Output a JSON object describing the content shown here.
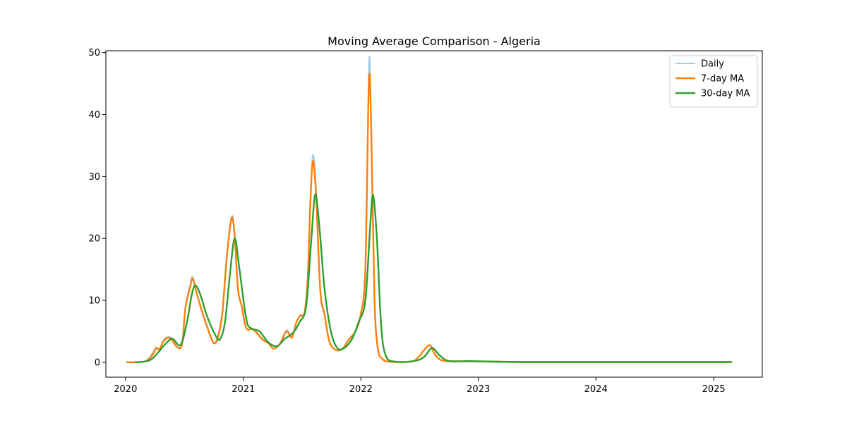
{
  "chart_data": {
    "type": "line",
    "title": "Moving Average Comparison - Algeria",
    "xlabel": "",
    "ylabel": "",
    "xlim": [
      "2019-11-01",
      "2025-06-01"
    ],
    "ylim": [
      -2.4,
      50.3
    ],
    "x_ticks": [
      "2020-01-01",
      "2021-01-01",
      "2022-01-01",
      "2023-01-01",
      "2024-01-01",
      "2025-01-01"
    ],
    "x_tick_labels": [
      "2020",
      "2021",
      "2022",
      "2023",
      "2024",
      "2025"
    ],
    "y_ticks": [
      0,
      10,
      20,
      30,
      40,
      50
    ],
    "y_tick_labels": [
      "0",
      "10",
      "20",
      "30",
      "40",
      "50"
    ],
    "grid": false,
    "legend_position": "top-right",
    "series": [
      {
        "name": "Daily",
        "color": "#a6cee3",
        "points": [
          [
            "2020-01-05",
            0
          ],
          [
            "2020-03-01",
            0.2
          ],
          [
            "2020-03-25",
            1.5
          ],
          [
            "2020-04-05",
            2.4
          ],
          [
            "2020-04-15",
            2.2
          ],
          [
            "2020-05-01",
            3.8
          ],
          [
            "2020-05-20",
            4.0
          ],
          [
            "2020-06-10",
            2.5
          ],
          [
            "2020-06-25",
            3.2
          ],
          [
            "2020-07-05",
            9.0
          ],
          [
            "2020-07-20",
            12.5
          ],
          [
            "2020-07-28",
            13.8
          ],
          [
            "2020-08-10",
            11.0
          ],
          [
            "2020-08-25",
            8.5
          ],
          [
            "2020-09-10",
            6.0
          ],
          [
            "2020-10-01",
            3.2
          ],
          [
            "2020-10-15",
            4.5
          ],
          [
            "2020-10-28",
            8.5
          ],
          [
            "2020-11-10",
            17.0
          ],
          [
            "2020-11-25",
            23.5
          ],
          [
            "2020-12-05",
            21.0
          ],
          [
            "2020-12-15",
            12.0
          ],
          [
            "2020-12-28",
            9.0
          ],
          [
            "2021-01-10",
            5.5
          ],
          [
            "2021-02-01",
            5.4
          ],
          [
            "2021-03-01",
            3.8
          ],
          [
            "2021-03-20",
            3.2
          ],
          [
            "2021-04-05",
            2.2
          ],
          [
            "2021-04-25",
            3.0
          ],
          [
            "2021-05-15",
            5.2
          ],
          [
            "2021-06-01",
            4.0
          ],
          [
            "2021-06-15",
            6.5
          ],
          [
            "2021-06-28",
            7.6
          ],
          [
            "2021-07-10",
            8.0
          ],
          [
            "2021-07-20",
            14.0
          ],
          [
            "2021-07-28",
            26.0
          ],
          [
            "2021-08-05",
            33.5
          ],
          [
            "2021-08-15",
            28.0
          ],
          [
            "2021-08-28",
            12.0
          ],
          [
            "2021-09-10",
            8.0
          ],
          [
            "2021-09-25",
            3.5
          ],
          [
            "2021-10-15",
            2.0
          ],
          [
            "2021-11-05",
            2.2
          ],
          [
            "2021-11-25",
            3.8
          ],
          [
            "2021-12-15",
            5.0
          ],
          [
            "2022-01-01",
            8.0
          ],
          [
            "2022-01-15",
            15.0
          ],
          [
            "2022-01-26",
            48.0
          ],
          [
            "2022-02-02",
            40.0
          ],
          [
            "2022-02-12",
            12.0
          ],
          [
            "2022-02-22",
            2.5
          ],
          [
            "2022-03-10",
            0.5
          ],
          [
            "2022-04-01",
            0.1
          ],
          [
            "2022-06-01",
            0.1
          ],
          [
            "2022-06-25",
            0.6
          ],
          [
            "2022-07-20",
            2.2
          ],
          [
            "2022-08-05",
            2.8
          ],
          [
            "2022-08-20",
            1.2
          ],
          [
            "2022-09-10",
            0.3
          ],
          [
            "2022-10-15",
            0.2
          ],
          [
            "2022-12-01",
            0.15
          ],
          [
            "2023-03-01",
            0.1
          ],
          [
            "2023-06-01",
            0.05
          ],
          [
            "2023-12-01",
            0.05
          ],
          [
            "2024-06-01",
            0.05
          ],
          [
            "2024-09-01",
            0.05
          ],
          [
            "2025-02-25",
            0.05
          ]
        ]
      },
      {
        "name": "7-day MA",
        "color": "#ff7f0e",
        "points": [
          [
            "2020-01-05",
            0
          ],
          [
            "2020-03-01",
            0.15
          ],
          [
            "2020-03-25",
            1.2
          ],
          [
            "2020-04-05",
            2.3
          ],
          [
            "2020-04-15",
            2.1
          ],
          [
            "2020-05-01",
            3.6
          ],
          [
            "2020-05-20",
            3.9
          ],
          [
            "2020-06-10",
            2.4
          ],
          [
            "2020-06-25",
            3.0
          ],
          [
            "2020-07-05",
            8.8
          ],
          [
            "2020-07-20",
            12.2
          ],
          [
            "2020-07-28",
            13.5
          ],
          [
            "2020-08-10",
            11.0
          ],
          [
            "2020-08-25",
            8.3
          ],
          [
            "2020-09-10",
            5.8
          ],
          [
            "2020-10-01",
            3.1
          ],
          [
            "2020-10-15",
            4.2
          ],
          [
            "2020-10-28",
            8.0
          ],
          [
            "2020-11-10",
            16.5
          ],
          [
            "2020-11-25",
            23.2
          ],
          [
            "2020-12-05",
            20.5
          ],
          [
            "2020-12-15",
            12.0
          ],
          [
            "2020-12-28",
            8.8
          ],
          [
            "2021-01-10",
            5.5
          ],
          [
            "2021-02-01",
            5.3
          ],
          [
            "2021-03-01",
            3.7
          ],
          [
            "2021-03-20",
            3.1
          ],
          [
            "2021-04-05",
            2.2
          ],
          [
            "2021-04-25",
            3.0
          ],
          [
            "2021-05-15",
            5.0
          ],
          [
            "2021-06-01",
            4.0
          ],
          [
            "2021-06-15",
            6.5
          ],
          [
            "2021-06-28",
            7.6
          ],
          [
            "2021-07-10",
            8.0
          ],
          [
            "2021-07-20",
            13.5
          ],
          [
            "2021-07-28",
            25.5
          ],
          [
            "2021-08-05",
            32.5
          ],
          [
            "2021-08-15",
            27.0
          ],
          [
            "2021-08-28",
            11.5
          ],
          [
            "2021-09-10",
            7.8
          ],
          [
            "2021-09-25",
            3.4
          ],
          [
            "2021-10-15",
            2.0
          ],
          [
            "2021-11-05",
            2.2
          ],
          [
            "2021-11-25",
            3.7
          ],
          [
            "2021-12-15",
            5.0
          ],
          [
            "2022-01-01",
            7.8
          ],
          [
            "2022-01-15",
            15.0
          ],
          [
            "2022-01-26",
            45.3
          ],
          [
            "2022-02-02",
            38.0
          ],
          [
            "2022-02-12",
            11.0
          ],
          [
            "2022-02-22",
            2.4
          ],
          [
            "2022-03-10",
            0.5
          ],
          [
            "2022-04-01",
            0.1
          ],
          [
            "2022-06-01",
            0.1
          ],
          [
            "2022-06-25",
            0.6
          ],
          [
            "2022-07-20",
            2.2
          ],
          [
            "2022-08-05",
            2.7
          ],
          [
            "2022-08-20",
            1.2
          ],
          [
            "2022-09-10",
            0.3
          ],
          [
            "2022-10-15",
            0.2
          ],
          [
            "2022-12-01",
            0.15
          ],
          [
            "2023-03-01",
            0.1
          ],
          [
            "2023-06-01",
            0.05
          ],
          [
            "2023-12-01",
            0.05
          ],
          [
            "2024-06-01",
            0.05
          ],
          [
            "2024-09-01",
            0.05
          ],
          [
            "2025-02-25",
            0.05
          ]
        ]
      },
      {
        "name": "30-day MA",
        "color": "#2ca02c",
        "points": [
          [
            "2020-02-01",
            0
          ],
          [
            "2020-03-15",
            0.3
          ],
          [
            "2020-04-10",
            1.5
          ],
          [
            "2020-05-01",
            2.8
          ],
          [
            "2020-05-25",
            3.8
          ],
          [
            "2020-06-20",
            2.8
          ],
          [
            "2020-07-10",
            6.5
          ],
          [
            "2020-07-25",
            11.0
          ],
          [
            "2020-08-05",
            12.4
          ],
          [
            "2020-08-20",
            11.0
          ],
          [
            "2020-09-10",
            7.5
          ],
          [
            "2020-10-05",
            4.5
          ],
          [
            "2020-10-20",
            3.7
          ],
          [
            "2020-11-05",
            6.5
          ],
          [
            "2020-11-20",
            14.0
          ],
          [
            "2020-12-05",
            20.0
          ],
          [
            "2020-12-20",
            15.0
          ],
          [
            "2021-01-10",
            7.0
          ],
          [
            "2021-01-25",
            5.5
          ],
          [
            "2021-02-20",
            5.0
          ],
          [
            "2021-03-20",
            3.2
          ],
          [
            "2021-04-15",
            2.6
          ],
          [
            "2021-05-10",
            3.8
          ],
          [
            "2021-06-05",
            4.8
          ],
          [
            "2021-06-25",
            6.5
          ],
          [
            "2021-07-15",
            9.0
          ],
          [
            "2021-07-30",
            19.0
          ],
          [
            "2021-08-12",
            27.1
          ],
          [
            "2021-08-25",
            22.0
          ],
          [
            "2021-09-10",
            12.0
          ],
          [
            "2021-09-30",
            5.0
          ],
          [
            "2021-10-20",
            2.3
          ],
          [
            "2021-11-10",
            2.3
          ],
          [
            "2021-12-05",
            3.8
          ],
          [
            "2021-12-25",
            6.5
          ],
          [
            "2022-01-15",
            10.0
          ],
          [
            "2022-01-30",
            22.0
          ],
          [
            "2022-02-08",
            27.0
          ],
          [
            "2022-02-20",
            20.0
          ],
          [
            "2022-03-05",
            6.0
          ],
          [
            "2022-03-20",
            1.0
          ],
          [
            "2022-04-20",
            0.1
          ],
          [
            "2022-06-15",
            0.2
          ],
          [
            "2022-07-15",
            0.8
          ],
          [
            "2022-08-10",
            2.3
          ],
          [
            "2022-09-01",
            1.2
          ],
          [
            "2022-10-01",
            0.2
          ],
          [
            "2022-12-01",
            0.2
          ],
          [
            "2023-03-01",
            0.1
          ],
          [
            "2023-06-01",
            0.05
          ],
          [
            "2023-12-01",
            0.05
          ],
          [
            "2024-06-01",
            0.05
          ],
          [
            "2024-09-01",
            0.05
          ],
          [
            "2025-02-25",
            0.05
          ]
        ]
      }
    ]
  }
}
